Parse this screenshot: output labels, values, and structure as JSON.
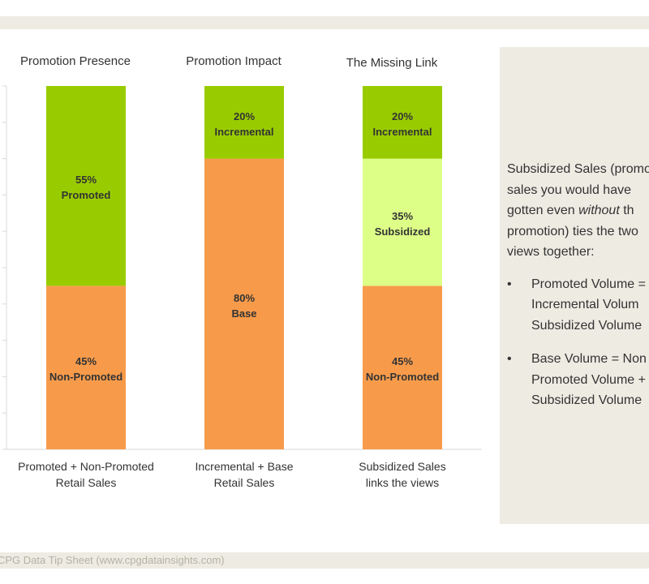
{
  "footer": {
    "text": "CPG Data Tip Sheet (www.cpgdatainsights.com)"
  },
  "side_panel": {
    "intro_before": "Subsidized Sales (promo\nsales you would have\ngotten even ",
    "intro_emph": "without",
    "intro_after": " th\npromotion) ties the two\nviews together:",
    "bullets": [
      "Promoted Volume =\nIncremental Volum\nSubsidized Volume",
      "Base Volume = Non\nPromoted Volume +\nSubsidized Volume"
    ],
    "bullet_glyph": "•"
  },
  "colors": {
    "green": "#99cc00",
    "orange": "#f79b4b",
    "light_green": "#ddff88",
    "axis": "#d9d9d9"
  },
  "chart_data": {
    "type": "bar",
    "stacked": true,
    "ylim": [
      0,
      100
    ],
    "grid": false,
    "titles": [
      "Promotion Presence",
      "Promotion Impact",
      "The Missing Link"
    ],
    "categories": [
      [
        "Promoted + Non-Promoted",
        "Retail Sales"
      ],
      [
        "Incremental + Base",
        "Retail Sales"
      ],
      [
        "Subsidized Sales",
        "links the views"
      ]
    ],
    "bars": [
      {
        "segments": [
          {
            "value": 45,
            "pct": "45%",
            "label": "Non-Promoted",
            "color": "#f79b4b"
          },
          {
            "value": 55,
            "pct": "55%",
            "label": "Promoted",
            "color": "#99cc00"
          }
        ]
      },
      {
        "segments": [
          {
            "value": 80,
            "pct": "80%",
            "label": "Base",
            "color": "#f79b4b"
          },
          {
            "value": 20,
            "pct": "20%",
            "label": "Incremental",
            "color": "#99cc00"
          }
        ]
      },
      {
        "segments": [
          {
            "value": 45,
            "pct": "45%",
            "label": "Non-Promoted",
            "color": "#f79b4b"
          },
          {
            "value": 35,
            "pct": "35%",
            "label": "Subsidized",
            "color": "#ddff88"
          },
          {
            "value": 20,
            "pct": "20%",
            "label": "Incremental",
            "color": "#99cc00"
          }
        ]
      }
    ]
  }
}
